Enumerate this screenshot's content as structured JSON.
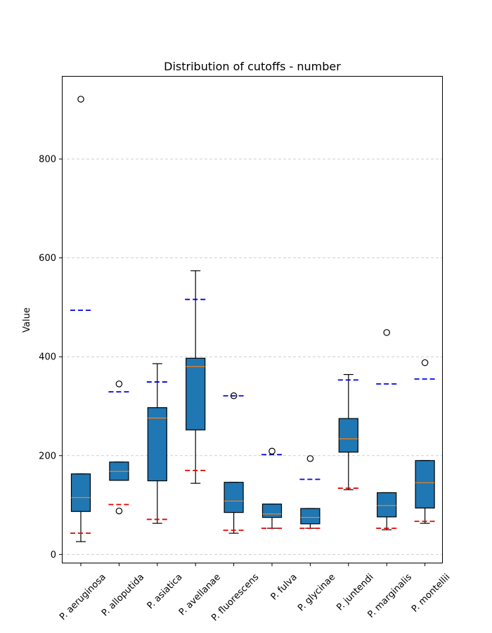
{
  "chart_data": {
    "type": "box",
    "title": "Distribution of cutoffs - number",
    "xlabel": "",
    "ylabel": "Value",
    "ylim": [
      -18,
      968
    ],
    "yticks": [
      0,
      200,
      400,
      600,
      800
    ],
    "grid": "y-dashed",
    "colors": {
      "box": "#1f77b4",
      "median": "#ff7f0e",
      "ref_low": "#e60000",
      "ref_high": "#0000e6"
    },
    "categories": [
      "P. aeruginosa",
      "P. alloputida",
      "P. asiatica",
      "P. avellanae",
      "P. fluorescens",
      "P. fulva",
      "P. glycinae",
      "P. juntendi",
      "P. marginalis",
      "P. montellii"
    ],
    "boxes": [
      {
        "whisker_low": 26,
        "q1": 87,
        "median": 115,
        "q3": 163,
        "whisker_high": 163,
        "outliers": [
          921
        ],
        "ref_low": 43,
        "ref_high": 494
      },
      {
        "whisker_low": 150,
        "q1": 150,
        "median": 168,
        "q3": 187,
        "whisker_high": 187,
        "outliers": [
          88,
          345
        ],
        "ref_low": 101,
        "ref_high": 329
      },
      {
        "whisker_low": 63,
        "q1": 149,
        "median": 276,
        "q3": 297,
        "whisker_high": 386,
        "outliers": [],
        "ref_low": 71,
        "ref_high": 349
      },
      {
        "whisker_low": 144,
        "q1": 252,
        "median": 380,
        "q3": 397,
        "whisker_high": 574,
        "outliers": [],
        "ref_low": 170,
        "ref_high": 516
      },
      {
        "whisker_low": 43,
        "q1": 85,
        "median": 108,
        "q3": 146,
        "whisker_high": 146,
        "outliers": [
          321
        ],
        "ref_low": 49,
        "ref_high": 321
      },
      {
        "whisker_low": 53,
        "q1": 75,
        "median": 82,
        "q3": 102,
        "whisker_high": 102,
        "outliers": [
          209
        ],
        "ref_low": 53,
        "ref_high": 202
      },
      {
        "whisker_low": 53,
        "q1": 62,
        "median": 75,
        "q3": 93,
        "whisker_high": 93,
        "outliers": [
          194
        ],
        "ref_low": 53,
        "ref_high": 152
      },
      {
        "whisker_low": 131,
        "q1": 207,
        "median": 234,
        "q3": 275,
        "whisker_high": 364,
        "outliers": [],
        "ref_low": 134,
        "ref_high": 353
      },
      {
        "whisker_low": 50,
        "q1": 76,
        "median": 99,
        "q3": 125,
        "whisker_high": 125,
        "outliers": [
          449
        ],
        "ref_low": 53,
        "ref_high": 345
      },
      {
        "whisker_low": 63,
        "q1": 94,
        "median": 145,
        "q3": 190,
        "whisker_high": 190,
        "outliers": [
          388
        ],
        "ref_low": 67,
        "ref_high": 355
      }
    ]
  }
}
